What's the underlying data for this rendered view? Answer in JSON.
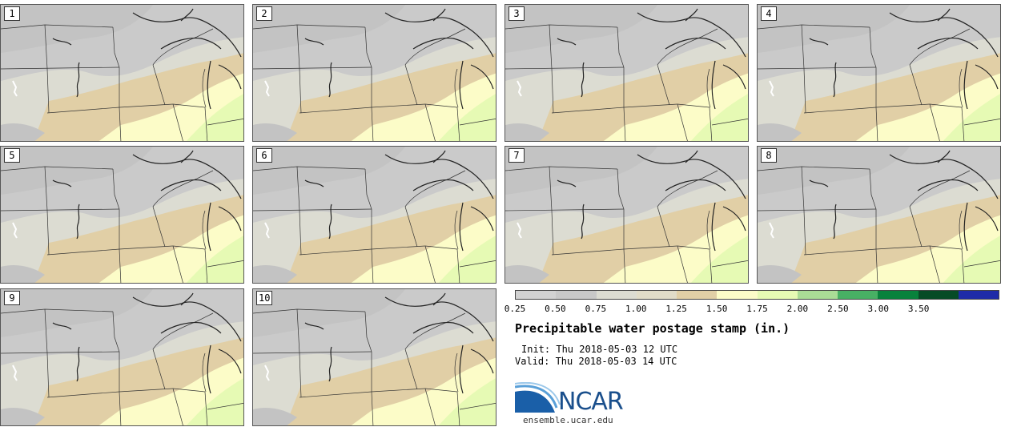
{
  "panels": [
    {
      "label": "1"
    },
    {
      "label": "2"
    },
    {
      "label": "3"
    },
    {
      "label": "4"
    },
    {
      "label": "5"
    },
    {
      "label": "6"
    },
    {
      "label": "7"
    },
    {
      "label": "8"
    },
    {
      "label": "9"
    },
    {
      "label": "10"
    }
  ],
  "colorbar": {
    "colors": [
      "#d2d2d2",
      "#c8c8c8",
      "#dcdcd2",
      "#e1dcc8",
      "#e1cfa6",
      "#fcfcc8",
      "#e6fab4",
      "#aadc96",
      "#48b064",
      "#08823c",
      "#064b26",
      "#1e2ba8"
    ],
    "ticks": [
      "0.25",
      "0.50",
      "0.75",
      "1.00",
      "1.25",
      "1.50",
      "1.75",
      "2.00",
      "2.50",
      "3.00",
      "3.50"
    ]
  },
  "title": "Precipitable water postage stamp (in.)",
  "init": "Init: Thu 2018-05-03 12 UTC",
  "valid": "Valid: Thu 2018-05-03 14 UTC",
  "logo": {
    "text": "NCAR"
  },
  "site": "ensemble.ucar.edu"
}
